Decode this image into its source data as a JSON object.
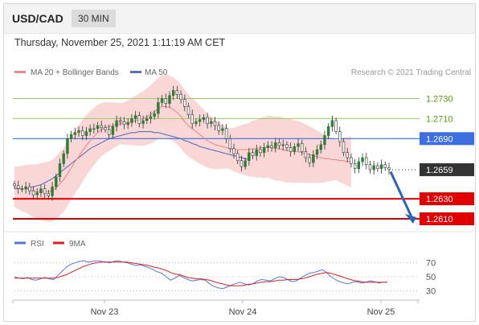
{
  "header": {
    "pair": "USD/CAD",
    "timeframe": "30 MIN"
  },
  "date": "Thursday, November 25, 2021 1:11:19 AM CET",
  "legend": {
    "ma20": "MA 20 + Bollinger Bands",
    "ma50": "MA 50"
  },
  "credit": "Research © 2021 Trading Central",
  "colors": {
    "candle": "#2e7d32",
    "bollinger": "#f7c6c6",
    "ma20": "#e88b8b",
    "ma50": "#5b6fb5",
    "resistance": "#9ccc65",
    "pivot": "#3d6fe0",
    "support": "#e00000",
    "arrow": "#2e63b8",
    "price_box": "#333333",
    "rsi": "#5577dd",
    "rsi_ma": "#e02020"
  },
  "chart_data": [
    {
      "type": "candlestick",
      "ylim": [
        1.2602,
        1.2748
      ],
      "x_ticks": [
        "Nov 23",
        "Nov 24",
        "Nov 25"
      ],
      "levels": [
        {
          "label": "1.2730",
          "value": 1.273,
          "kind": "resistance"
        },
        {
          "label": "1.2710",
          "value": 1.271,
          "kind": "resistance"
        },
        {
          "label": "1.2690",
          "value": 1.269,
          "kind": "pivot"
        },
        {
          "label": "1.2659",
          "value": 1.2659,
          "kind": "last"
        },
        {
          "label": "1.2630",
          "value": 1.263,
          "kind": "support"
        },
        {
          "label": "1.2610",
          "value": 1.261,
          "kind": "support"
        }
      ],
      "close": [
        1.2643,
        1.264,
        1.264,
        1.2642,
        1.2638,
        1.2634,
        1.2636,
        1.264,
        1.2635,
        1.2633,
        1.2642,
        1.2652,
        1.2665,
        1.2675,
        1.269,
        1.2694,
        1.2696,
        1.2698,
        1.2693,
        1.2697,
        1.27,
        1.27,
        1.2703,
        1.2701,
        1.2699,
        1.2694,
        1.2702,
        1.2708,
        1.2707,
        1.2704,
        1.2706,
        1.271,
        1.2713,
        1.2705,
        1.2708,
        1.271,
        1.2712,
        1.2715,
        1.2726,
        1.273,
        1.2725,
        1.2733,
        1.2738,
        1.2734,
        1.2729,
        1.2722,
        1.2714,
        1.2705,
        1.2707,
        1.2709,
        1.2711,
        1.2705,
        1.2707,
        1.2703,
        1.2698,
        1.27,
        1.269,
        1.268,
        1.2675,
        1.2668,
        1.2662,
        1.2668,
        1.2676,
        1.2673,
        1.2679,
        1.2676,
        1.2681,
        1.2683,
        1.2681,
        1.2686,
        1.2683,
        1.2684,
        1.2681,
        1.2677,
        1.2682,
        1.2685,
        1.2677,
        1.2671,
        1.2666,
        1.2674,
        1.2679,
        1.2684,
        1.2693,
        1.2702,
        1.2708,
        1.2697,
        1.2687,
        1.2676,
        1.2671,
        1.2665,
        1.266,
        1.2667,
        1.2671,
        1.2664,
        1.2659,
        1.2663,
        1.266,
        1.2664,
        1.2661,
        1.2659
      ],
      "ma20": [
        1.2642,
        1.2641,
        1.264,
        1.264,
        1.2639,
        1.2638,
        1.2637,
        1.2637,
        1.2637,
        1.2637,
        1.2638,
        1.2641,
        1.2645,
        1.2649,
        1.2655,
        1.2661,
        1.2667,
        1.2672,
        1.2678,
        1.2683,
        1.2688,
        1.2692,
        1.2696,
        1.2699,
        1.2701,
        1.2702,
        1.2703,
        1.2704,
        1.2705,
        1.2705,
        1.2706,
        1.2707,
        1.2708,
        1.2709,
        1.271,
        1.2712,
        1.2714,
        1.2717,
        1.272,
        1.2722,
        1.2722,
        1.2721,
        1.2719,
        1.2716,
        1.2712,
        1.2707,
        1.2703,
        1.27,
        1.2697,
        1.2694,
        1.2691,
        1.2688,
        1.2686,
        1.2684,
        1.2683,
        1.2682,
        1.2681,
        1.268,
        1.2679,
        1.2679,
        1.2679,
        1.2679,
        1.2679,
        1.268,
        1.268,
        1.2681,
        1.2681,
        1.2682,
        1.2681,
        1.268,
        1.268,
        1.2679,
        1.2678,
        1.2678,
        1.2677,
        1.2677,
        1.2676,
        1.2675,
        1.2674,
        1.2673,
        1.2672,
        1.2671,
        1.267,
        1.267,
        1.2669,
        1.2669,
        1.2668,
        1.2668,
        1.2667,
        1.2667
      ],
      "ma50": [
        1.264,
        1.264,
        1.264,
        1.264,
        1.2641,
        1.2642,
        1.2643,
        1.2644,
        1.2646,
        1.2648,
        1.265,
        1.2653,
        1.2656,
        1.2659,
        1.2662,
        1.2665,
        1.2668,
        1.2671,
        1.2674,
        1.2677,
        1.268,
        1.2682,
        1.2684,
        1.2686,
        1.2688,
        1.269,
        1.2691,
        1.2692,
        1.2693,
        1.2694,
        1.2695,
        1.2696,
        1.2696,
        1.2697,
        1.2697,
        1.2697,
        1.2697,
        1.2696,
        1.2696,
        1.2695,
        1.2694,
        1.2693,
        1.2692,
        1.2691,
        1.269,
        1.2688,
        1.2687,
        1.2685,
        1.2684,
        1.2682,
        1.2681,
        1.268,
        1.2679,
        1.2678,
        1.2677,
        1.2676,
        1.2675,
        1.2674,
        1.2673,
        1.2672,
        1.2671,
        1.267,
        1.2669
      ]
    },
    {
      "type": "line",
      "legend": [
        "RSI",
        "9MA"
      ],
      "y_ticks": [
        70,
        50,
        30
      ],
      "ylim": [
        20,
        80
      ],
      "series": [
        {
          "name": "RSI",
          "values": [
            50,
            48,
            47,
            49,
            46,
            45,
            47,
            49,
            47,
            46,
            52,
            58,
            64,
            68,
            70,
            72,
            73,
            71,
            72,
            73,
            72,
            71,
            70,
            72,
            73,
            71,
            70,
            68,
            66,
            67,
            65,
            63,
            60,
            57,
            55,
            50,
            45,
            48,
            52,
            49,
            46,
            44,
            45,
            46,
            45,
            40,
            36,
            34,
            33,
            35,
            38,
            40,
            42,
            40,
            38,
            40,
            44,
            46,
            45,
            44,
            47,
            50,
            49,
            46,
            43,
            44,
            48,
            52,
            55,
            56,
            58,
            60,
            56,
            50,
            46,
            43,
            41,
            40,
            42,
            43,
            41,
            42,
            44,
            43,
            41,
            42,
            42
          ]
        },
        {
          "name": "9MA",
          "values": [
            48,
            48,
            48,
            48,
            48,
            48,
            48,
            48,
            48,
            48,
            49,
            51,
            53,
            56,
            59,
            62,
            65,
            67,
            69,
            70,
            71,
            71,
            71,
            71,
            71,
            71,
            71,
            70,
            69,
            68,
            67,
            66,
            64,
            63,
            61,
            59,
            56,
            54,
            53,
            51,
            49,
            48,
            47,
            47,
            46,
            45,
            43,
            41,
            40,
            38,
            37,
            37,
            37,
            38,
            39,
            40,
            41,
            42,
            43,
            43,
            44,
            45,
            45,
            46,
            46,
            46,
            47,
            48,
            50,
            52,
            54,
            55,
            56,
            55,
            53,
            51,
            49,
            47,
            45,
            44,
            43,
            42,
            42,
            42,
            42,
            42,
            42
          ]
        }
      ]
    }
  ]
}
